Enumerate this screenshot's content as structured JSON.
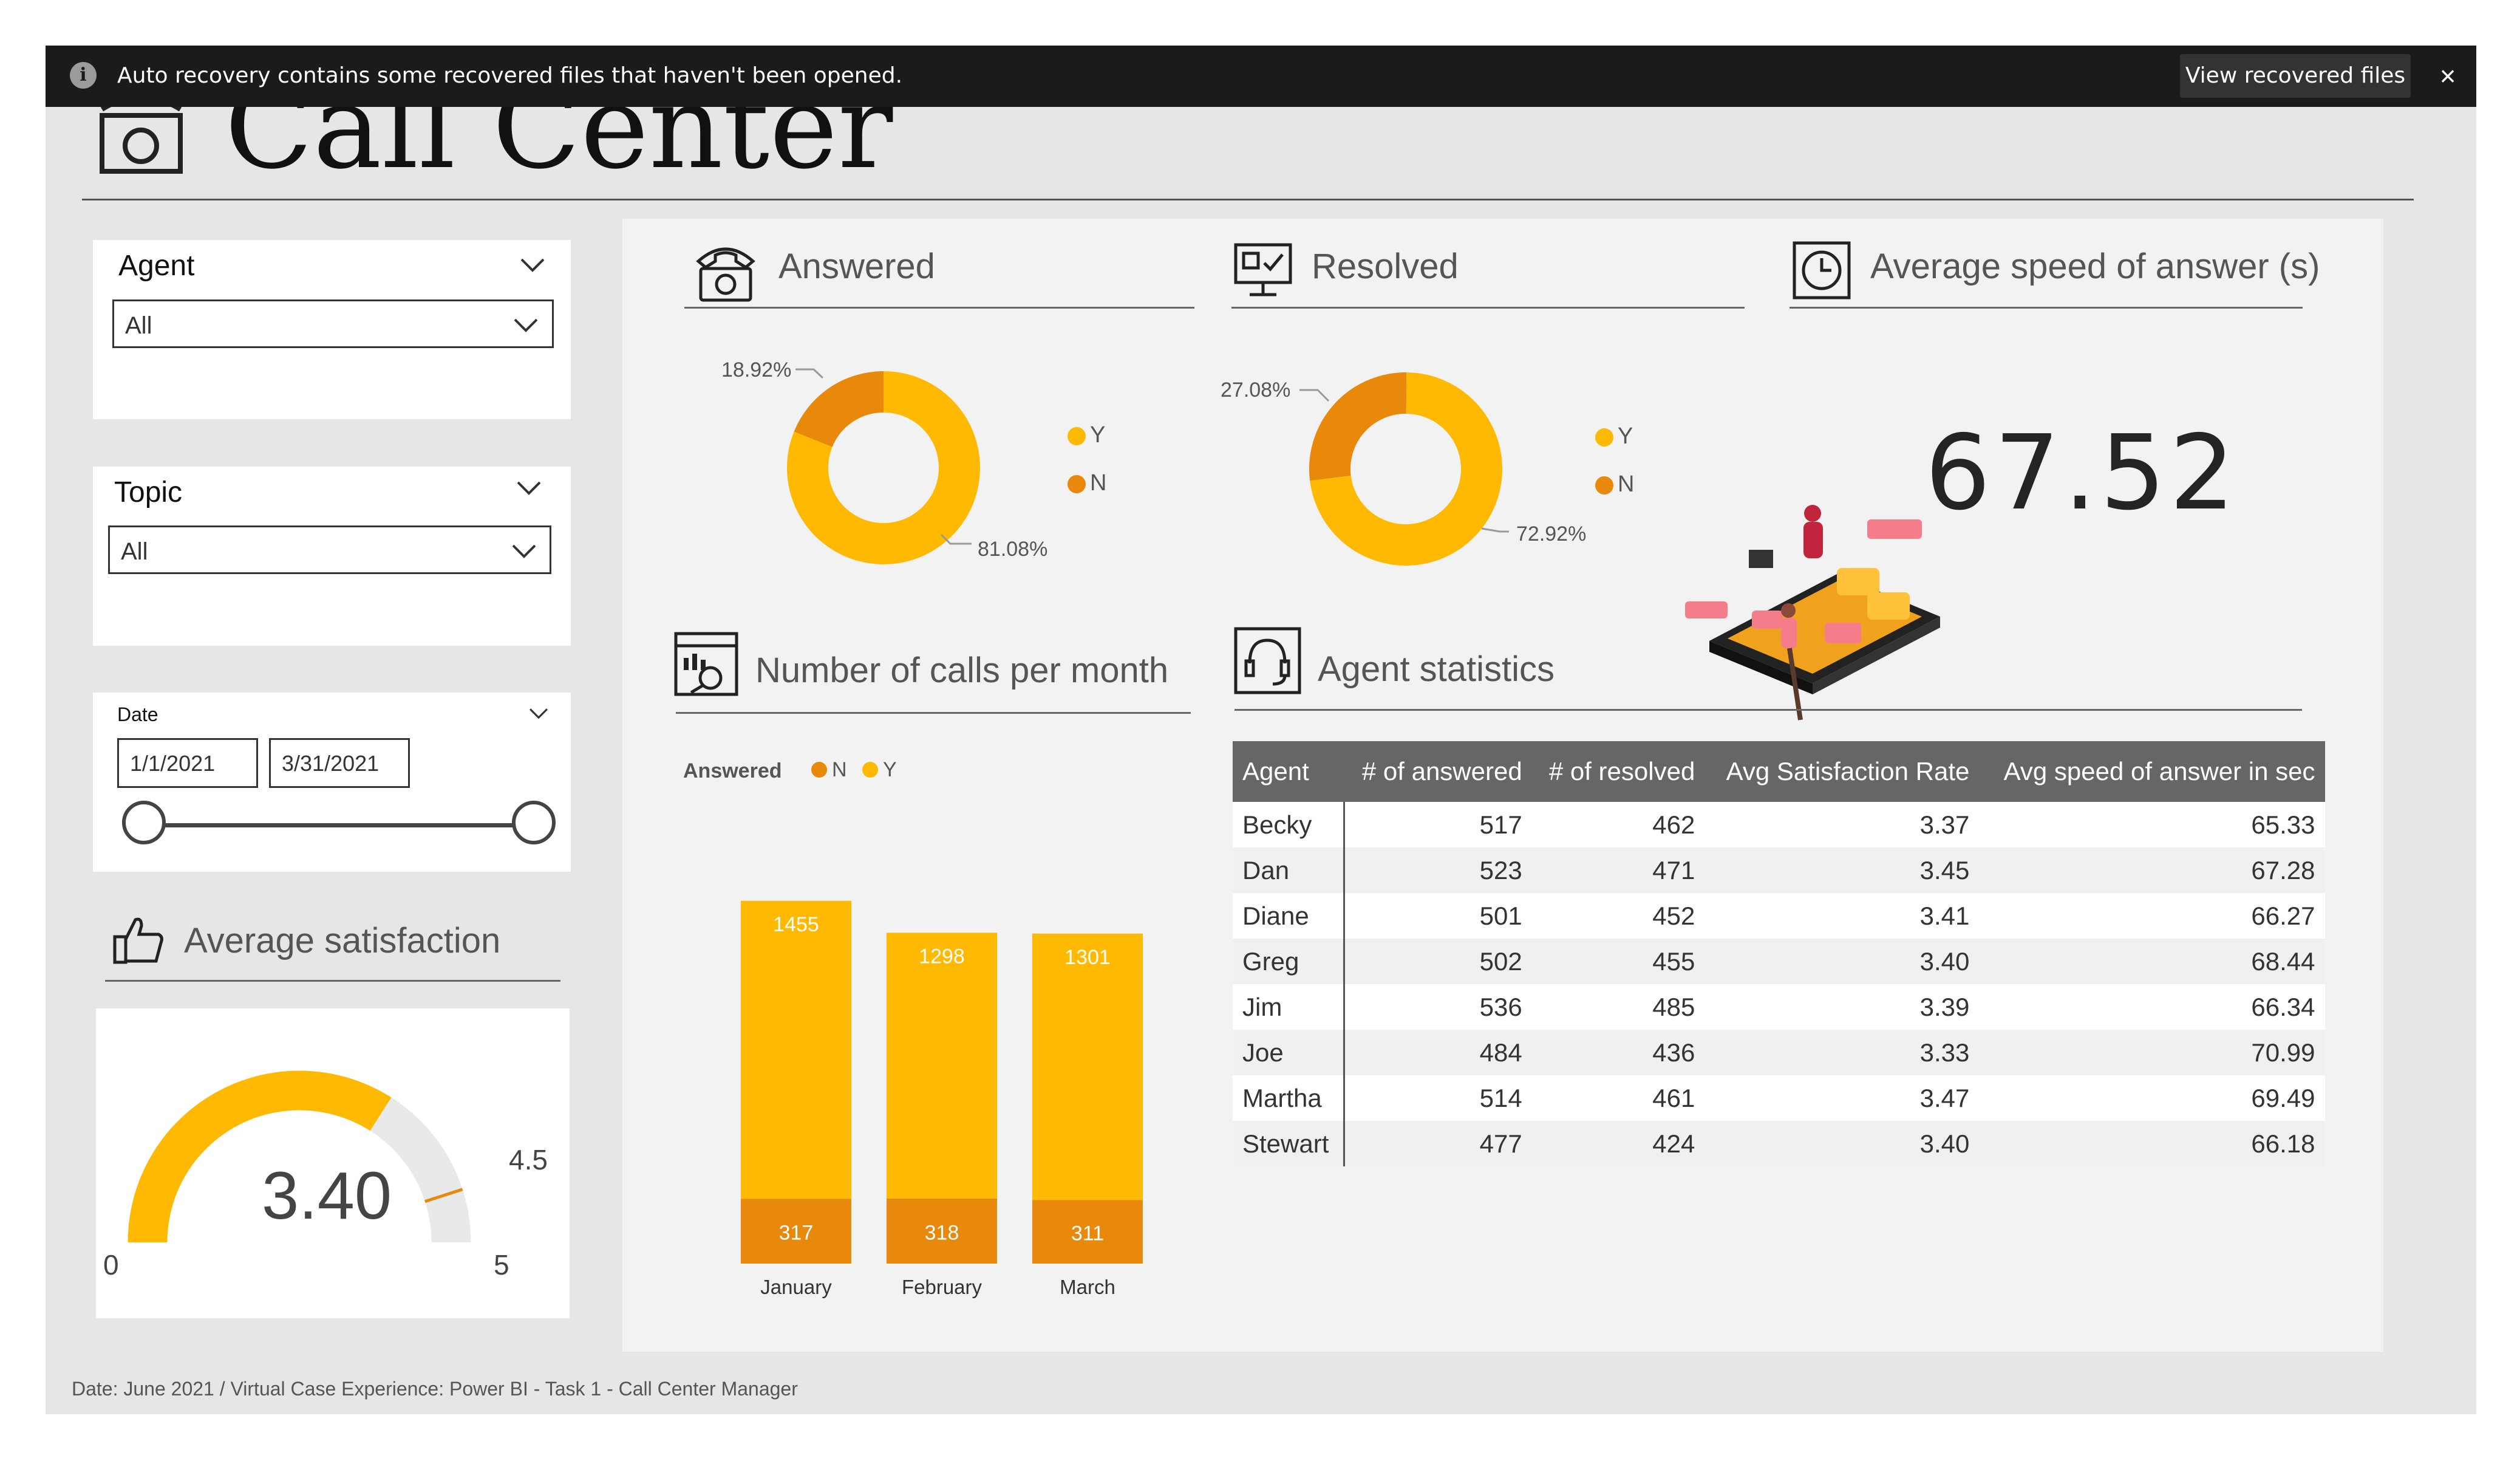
{
  "notification": {
    "message": "Auto recovery contains some recovered files that haven't been opened.",
    "button": "View recovered files",
    "close": "×"
  },
  "header": {
    "title": "Call Center"
  },
  "filters": {
    "agent": {
      "label": "Agent",
      "value": "All"
    },
    "topic": {
      "label": "Topic",
      "value": "All"
    },
    "date": {
      "label": "Date",
      "start": "1/1/2021",
      "end": "3/31/2021"
    }
  },
  "avg_satisfaction": {
    "title": "Average satisfaction",
    "value": "3.40",
    "min": "0",
    "max": "5",
    "target": "4.5",
    "fraction": 0.68,
    "target_fraction": 0.9
  },
  "answered": {
    "title": "Answered",
    "labels": {
      "n": "18.92%",
      "y": "81.08%"
    },
    "legend": [
      "Y",
      "N"
    ]
  },
  "resolved": {
    "title": "Resolved",
    "labels": {
      "n": "27.08%",
      "y": "72.92%"
    },
    "legend": [
      "Y",
      "N"
    ]
  },
  "speed": {
    "title": "Average speed of answer (s)",
    "value": "67.52"
  },
  "calls_per_month": {
    "title": "Number of calls per month",
    "legend_title": "Answered",
    "legend": [
      "N",
      "Y"
    ]
  },
  "agent_stats": {
    "title": "Agent statistics",
    "columns": [
      "Agent",
      "# of answered",
      "# of resolved",
      "Avg Satisfaction Rate",
      "Avg speed of answer in sec"
    ],
    "rows": [
      [
        "Becky",
        "517",
        "462",
        "3.37",
        "65.33"
      ],
      [
        "Dan",
        "523",
        "471",
        "3.45",
        "67.28"
      ],
      [
        "Diane",
        "501",
        "452",
        "3.41",
        "66.27"
      ],
      [
        "Greg",
        "502",
        "455",
        "3.40",
        "68.44"
      ],
      [
        "Jim",
        "536",
        "485",
        "3.39",
        "66.34"
      ],
      [
        "Joe",
        "484",
        "436",
        "3.33",
        "70.99"
      ],
      [
        "Martha",
        "514",
        "461",
        "3.47",
        "69.49"
      ],
      [
        "Stewart",
        "477",
        "424",
        "3.40",
        "66.18"
      ]
    ]
  },
  "colors": {
    "y": "#FFB900",
    "n": "#E8890C",
    "header_bg": "#666666"
  },
  "footer": "Date: June 2021 / Virtual Case Experience: Power BI - Task 1 - Call Center Manager",
  "chart_data": [
    {
      "type": "pie",
      "title": "Answered",
      "categories": [
        "Y",
        "N"
      ],
      "values": [
        81.08,
        18.92
      ]
    },
    {
      "type": "pie",
      "title": "Resolved",
      "categories": [
        "Y",
        "N"
      ],
      "values": [
        72.92,
        27.08
      ]
    },
    {
      "type": "bar",
      "title": "Number of calls per month",
      "stacked": true,
      "categories": [
        "January",
        "February",
        "March"
      ],
      "series": [
        {
          "name": "N",
          "values": [
            317,
            318,
            311
          ]
        },
        {
          "name": "Y",
          "values": [
            1455,
            1298,
            1301
          ]
        }
      ],
      "legend": "top-left",
      "grid": false
    }
  ]
}
